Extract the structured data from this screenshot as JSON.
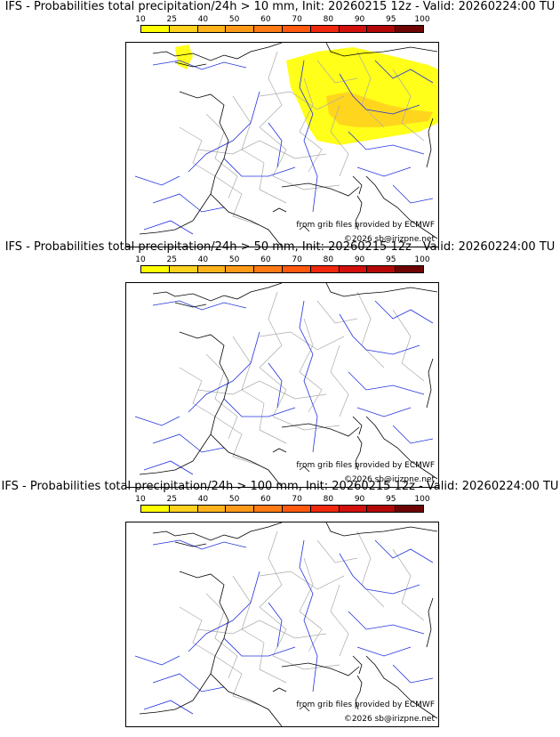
{
  "colors": {
    "scale": [
      "#ffff00",
      "#ffd21e",
      "#ffb31a",
      "#ff9a18",
      "#ff7a14",
      "#ff5a10",
      "#f0280e",
      "#d2100c",
      "#b40808",
      "#6e0404"
    ],
    "coast": "#000000",
    "rivers": "#2233dd",
    "borders": "#aaaaaa"
  },
  "panels": [
    {
      "title": "IFS - Probabilities total precipitation/24h > 10 mm, Init: 20260215 12z - Valid: 20260224:00 TU",
      "colorbar_labels": [
        "10",
        "25",
        "40",
        "50",
        "60",
        "70",
        "80",
        "90",
        "95",
        "100"
      ],
      "source_credit": "from grib files provided by ECMWF",
      "copyright": "©2026 sb@irizpne.net",
      "precip_areas": [
        {
          "region": "north-east and alps",
          "probability_class": "10-25"
        },
        {
          "region": "alps core",
          "probability_class": "25-40"
        },
        {
          "region": "cornwall",
          "probability_class": "10-25"
        }
      ]
    },
    {
      "title": "IFS - Probabilities total precipitation/24h > 50 mm, Init: 20260215 12z - Valid: 20260224:00 TU",
      "colorbar_labels": [
        "10",
        "25",
        "40",
        "50",
        "60",
        "70",
        "80",
        "90",
        "95",
        "100"
      ],
      "source_credit": "from grib files provided by ECMWF",
      "copyright": "©2026 sb@irizpne.net",
      "precip_areas": []
    },
    {
      "title": "IFS - Probabilities total precipitation/24h > 100 mm, Init: 20260215 12z - Valid: 20260224:00 TU",
      "colorbar_labels": [
        "10",
        "25",
        "40",
        "50",
        "60",
        "70",
        "80",
        "90",
        "95",
        "100"
      ],
      "source_credit": "from grib files provided by ECMWF",
      "copyright": "©2026 sb@irizpne.net",
      "precip_areas": []
    }
  ]
}
